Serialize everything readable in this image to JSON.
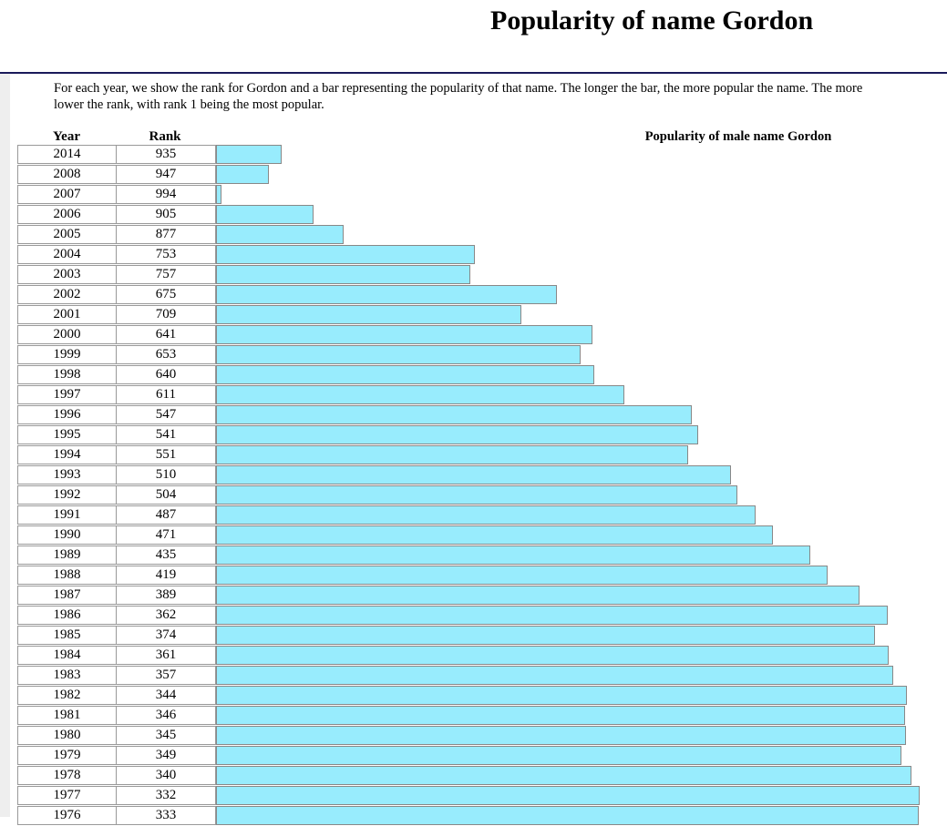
{
  "page": {
    "title": "Popularity of name Gordon",
    "intro_line1": "For each year, we show the rank for Gordon and a bar representing the popularity of that name. The longer the bar, the more popular the name. The more",
    "intro_line2": "lower the rank, with rank 1 being the most popular."
  },
  "table": {
    "year_header": "Year",
    "rank_header": "Rank",
    "chart_header": "Popularity of male name Gordon"
  },
  "colors": {
    "bar_fill": "#98ecfd",
    "title_rule": "#1a1a5a"
  },
  "chart_data": {
    "type": "bar",
    "title": "Popularity of male name Gordon",
    "orientation": "horizontal",
    "grid": false,
    "categories": [
      "2014",
      "2008",
      "2007",
      "2006",
      "2005",
      "2004",
      "2003",
      "2002",
      "2001",
      "2000",
      "1999",
      "1998",
      "1997",
      "1996",
      "1995",
      "1994",
      "1993",
      "1992",
      "1991",
      "1990",
      "1989",
      "1988",
      "1987",
      "1986",
      "1985",
      "1984",
      "1983",
      "1982",
      "1981",
      "1980",
      "1979",
      "1978",
      "1977",
      "1976"
    ],
    "values": [
      935,
      947,
      994,
      905,
      877,
      753,
      757,
      675,
      709,
      641,
      653,
      640,
      611,
      547,
      541,
      551,
      510,
      504,
      487,
      471,
      435,
      419,
      389,
      362,
      374,
      361,
      357,
      344,
      346,
      345,
      349,
      340,
      332,
      333
    ]
  }
}
